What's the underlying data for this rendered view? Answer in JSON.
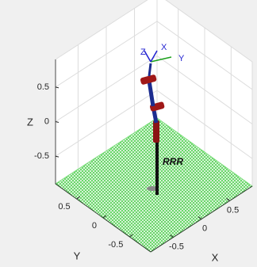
{
  "chart_data": {
    "type": "robot3d",
    "xlabel": "X",
    "ylabel": "Y",
    "zlabel": "Z",
    "xlim": [
      -0.9,
      0.9
    ],
    "ylim": [
      -0.9,
      0.9
    ],
    "zlim": [
      -0.9,
      0.9
    ],
    "xticks": [
      -0.5,
      0,
      0.5
    ],
    "yticks": [
      -0.5,
      0,
      0.5
    ],
    "zticks": [
      -0.5,
      0,
      0.5
    ],
    "grid": true,
    "floor_color": "#7ee07e",
    "robot_name": "RRR",
    "frame_labels": [
      "Z",
      "X",
      "Y"
    ]
  }
}
